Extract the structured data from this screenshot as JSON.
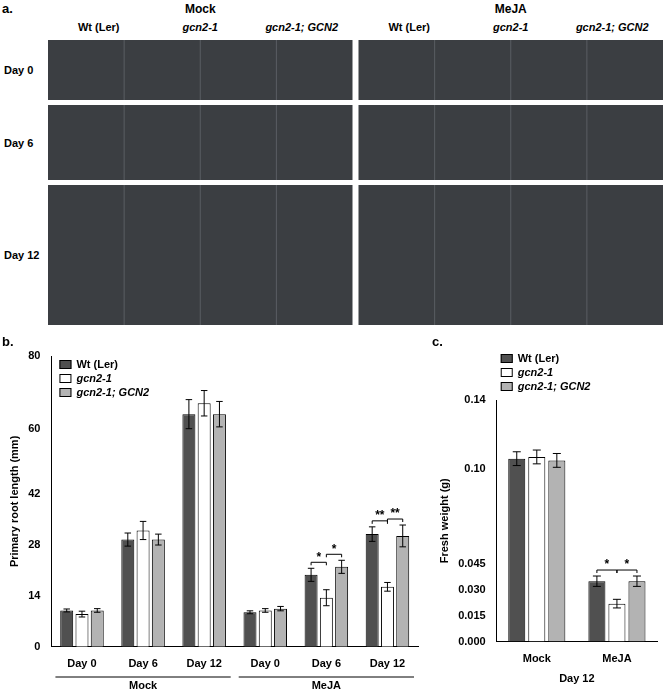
{
  "panel_a": {
    "label": "a.",
    "conditions": [
      "Mock",
      "MeJA"
    ],
    "genotypes": [
      "Wt (Ler)",
      "gcn2-1",
      "gcn2-1; GCN2"
    ],
    "days": [
      "Day 0",
      "Day 6",
      "Day 12"
    ]
  },
  "chart_data": [
    {
      "panel_label": "b.",
      "type": "bar",
      "y_label": "Primary root length (mm)",
      "category_groups": [
        {
          "name": "Mock",
          "categories": [
            "Day 0",
            "Day 6",
            "Day 12"
          ]
        },
        {
          "name": "MeJA",
          "categories": [
            "Day 0",
            "Day 6",
            "Day 12"
          ]
        }
      ],
      "series": [
        {
          "name": "Wt (Ler)",
          "color": "#505050",
          "values": [
            10,
            29.5,
            64,
            9.5,
            19.8,
            31
          ],
          "errors": [
            0.4,
            1.8,
            4,
            0.4,
            1.8,
            2
          ]
        },
        {
          "name": "gcn2-1",
          "color": "#ffffff",
          "values": [
            9,
            32,
            67,
            10,
            13.5,
            16.5
          ],
          "errors": [
            0.8,
            2.5,
            3.5,
            0.5,
            2.2,
            1.2
          ]
        },
        {
          "name": "gcn2-1; GCN2",
          "color": "#b3b3b3",
          "values": [
            10,
            29.5,
            64,
            10.5,
            22,
            30.5
          ],
          "errors": [
            0.5,
            1.5,
            3.5,
            0.6,
            1.8,
            3
          ]
        }
      ],
      "ylim": [
        0,
        80
      ],
      "yticks": [
        0,
        14,
        28,
        42,
        60,
        80
      ],
      "grid": false,
      "legend": "top-left",
      "annotations": [
        {
          "text": "*",
          "group": "MeJA",
          "category": "Day 6",
          "between": [
            "Wt (Ler)",
            "gcn2-1"
          ]
        },
        {
          "text": "*",
          "group": "MeJA",
          "category": "Day 6",
          "between": [
            "gcn2-1",
            "gcn2-1; GCN2"
          ]
        },
        {
          "text": "**",
          "group": "MeJA",
          "category": "Day 12",
          "between": [
            "Wt (Ler)",
            "gcn2-1"
          ]
        },
        {
          "text": "**",
          "group": "MeJA",
          "category": "Day 12",
          "between": [
            "gcn2-1",
            "gcn2-1; GCN2"
          ]
        }
      ]
    },
    {
      "panel_label": "c.",
      "type": "bar",
      "y_label": "Fresh weight (g)",
      "x_label": "Day 12",
      "categories": [
        "Mock",
        "MeJA"
      ],
      "series": [
        {
          "name": "Wt (Ler)",
          "color": "#505050",
          "values": [
            0.106,
            0.035
          ],
          "errors": [
            0.004,
            0.003
          ]
        },
        {
          "name": "gcn2-1",
          "color": "#ffffff",
          "values": [
            0.107,
            0.022
          ],
          "errors": [
            0.004,
            0.0025
          ]
        },
        {
          "name": "gcn2-1; GCN2",
          "color": "#b3b3b3",
          "values": [
            0.105,
            0.035
          ],
          "errors": [
            0.004,
            0.003
          ]
        }
      ],
      "ylim": [
        0,
        0.14
      ],
      "yticks": [
        {
          "value": 0,
          "label": "0.000"
        },
        {
          "value": 0.015,
          "label": "0.015"
        },
        {
          "value": 0.03,
          "label": "0.030"
        },
        {
          "value": 0.045,
          "label": "0.045"
        },
        {
          "value": 0.1,
          "label": "0.10"
        },
        {
          "value": 0.14,
          "label": "0.14"
        }
      ],
      "grid": false,
      "legend": "top",
      "annotations": [
        {
          "text": "*",
          "category": "MeJA",
          "between": [
            "Wt (Ler)",
            "gcn2-1"
          ]
        },
        {
          "text": "*",
          "category": "MeJA",
          "between": [
            "gcn2-1",
            "gcn2-1; GCN2"
          ]
        }
      ]
    }
  ]
}
